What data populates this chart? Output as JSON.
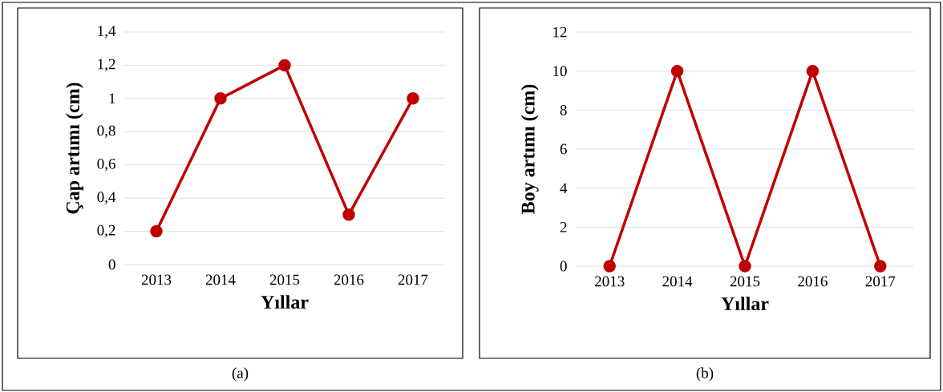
{
  "chart_data": [
    {
      "type": "line",
      "xlabel": "Yıllar",
      "ylabel": "Çap artımı (cm)",
      "categories": [
        "2013",
        "2014",
        "2015",
        "2016",
        "2017"
      ],
      "series": [
        {
          "color": "#c00000",
          "values": [
            0.2,
            1,
            1.2,
            0.3,
            1
          ]
        }
      ],
      "ylim": [
        0,
        1.4
      ],
      "yticks": [
        0,
        {
          "value": 0.2,
          "label": "0,2"
        },
        {
          "value": 0.4,
          "label": "0,4"
        },
        {
          "value": 0.6,
          "label": "0,6"
        },
        {
          "value": 0.8,
          "label": "0,8"
        },
        1,
        {
          "value": 1.2,
          "label": "1,2"
        },
        {
          "value": 1.4,
          "label": "1,4"
        }
      ],
      "grid": "y",
      "marker": "circle",
      "line_style": "solid",
      "annotations": [
        "(a)"
      ]
    },
    {
      "type": "line",
      "xlabel": "Yıllar",
      "ylabel": "Boy artımı (cm)",
      "categories": [
        "2013",
        "2014",
        "2015",
        "2016",
        "2017"
      ],
      "series": [
        {
          "color": "#c00000",
          "values": [
            0,
            10,
            0,
            10,
            0
          ]
        }
      ],
      "ylim": [
        0,
        12
      ],
      "yticks": [
        0,
        2,
        4,
        6,
        8,
        10,
        12
      ],
      "grid": "y",
      "marker": "circle",
      "line_style": "solid",
      "annotations": [
        "(b)"
      ]
    }
  ]
}
